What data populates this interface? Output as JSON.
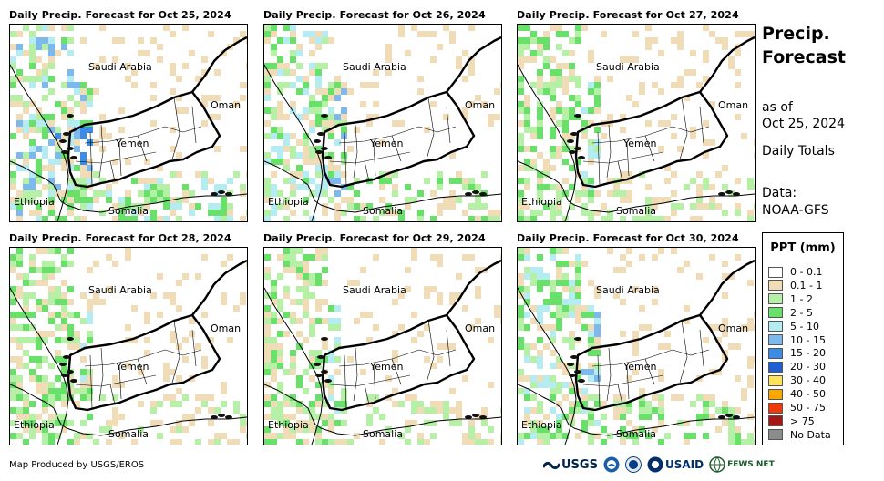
{
  "panels": [
    {
      "title": "Daily Precip. Forecast for Oct 25, 2024",
      "intensity": 3
    },
    {
      "title": "Daily Precip. Forecast for Oct 26, 2024",
      "intensity": 2
    },
    {
      "title": "Daily Precip. Forecast for Oct 27, 2024",
      "intensity": 1
    },
    {
      "title": "Daily Precip. Forecast for Oct 28, 2024",
      "intensity": 1
    },
    {
      "title": "Daily Precip. Forecast for Oct 29, 2024",
      "intensity": 1
    },
    {
      "title": "Daily Precip. Forecast for Oct 30, 2024",
      "intensity": 2
    }
  ],
  "map_labels": {
    "saudi": "Saudi Arabia",
    "oman": "Oman",
    "yemen": "Yemen",
    "ethiopia": "Ethiopia",
    "somalia": "Somalia"
  },
  "side": {
    "title_line1": "Precip.",
    "title_line2": "Forecast",
    "asof_line1": "as of",
    "asof_line2": "Oct 25, 2024",
    "totals": "Daily Totals",
    "data_line1": "Data:",
    "data_line2": "NOAA-GFS"
  },
  "legend": {
    "title": "PPT (mm)",
    "items": [
      {
        "label": "0 - 0.1",
        "color": "#ffffff"
      },
      {
        "label": "0.1 - 1",
        "color": "#f0dcb6"
      },
      {
        "label": "1 - 2",
        "color": "#b6efa6"
      },
      {
        "label": "2 - 5",
        "color": "#69e06a"
      },
      {
        "label": "5 - 10",
        "color": "#b4ecf2"
      },
      {
        "label": "10 - 15",
        "color": "#7eb9ee"
      },
      {
        "label": "15 - 20",
        "color": "#3c8ce6"
      },
      {
        "label": "20 - 30",
        "color": "#1f5fd0"
      },
      {
        "label": "30 - 40",
        "color": "#fce55a"
      },
      {
        "label": "40 - 50",
        "color": "#f8a800"
      },
      {
        "label": "50 - 75",
        "color": "#ee3a0a"
      },
      {
        "label": "> 75",
        "color": "#a51616"
      },
      {
        "label": "No Data",
        "color": "#8c8c8c"
      }
    ]
  },
  "footer": {
    "credit": "Map Produced by USGS/EROS",
    "usgs": "USGS",
    "usaid": "USAID",
    "fews": "FEWS NET"
  }
}
